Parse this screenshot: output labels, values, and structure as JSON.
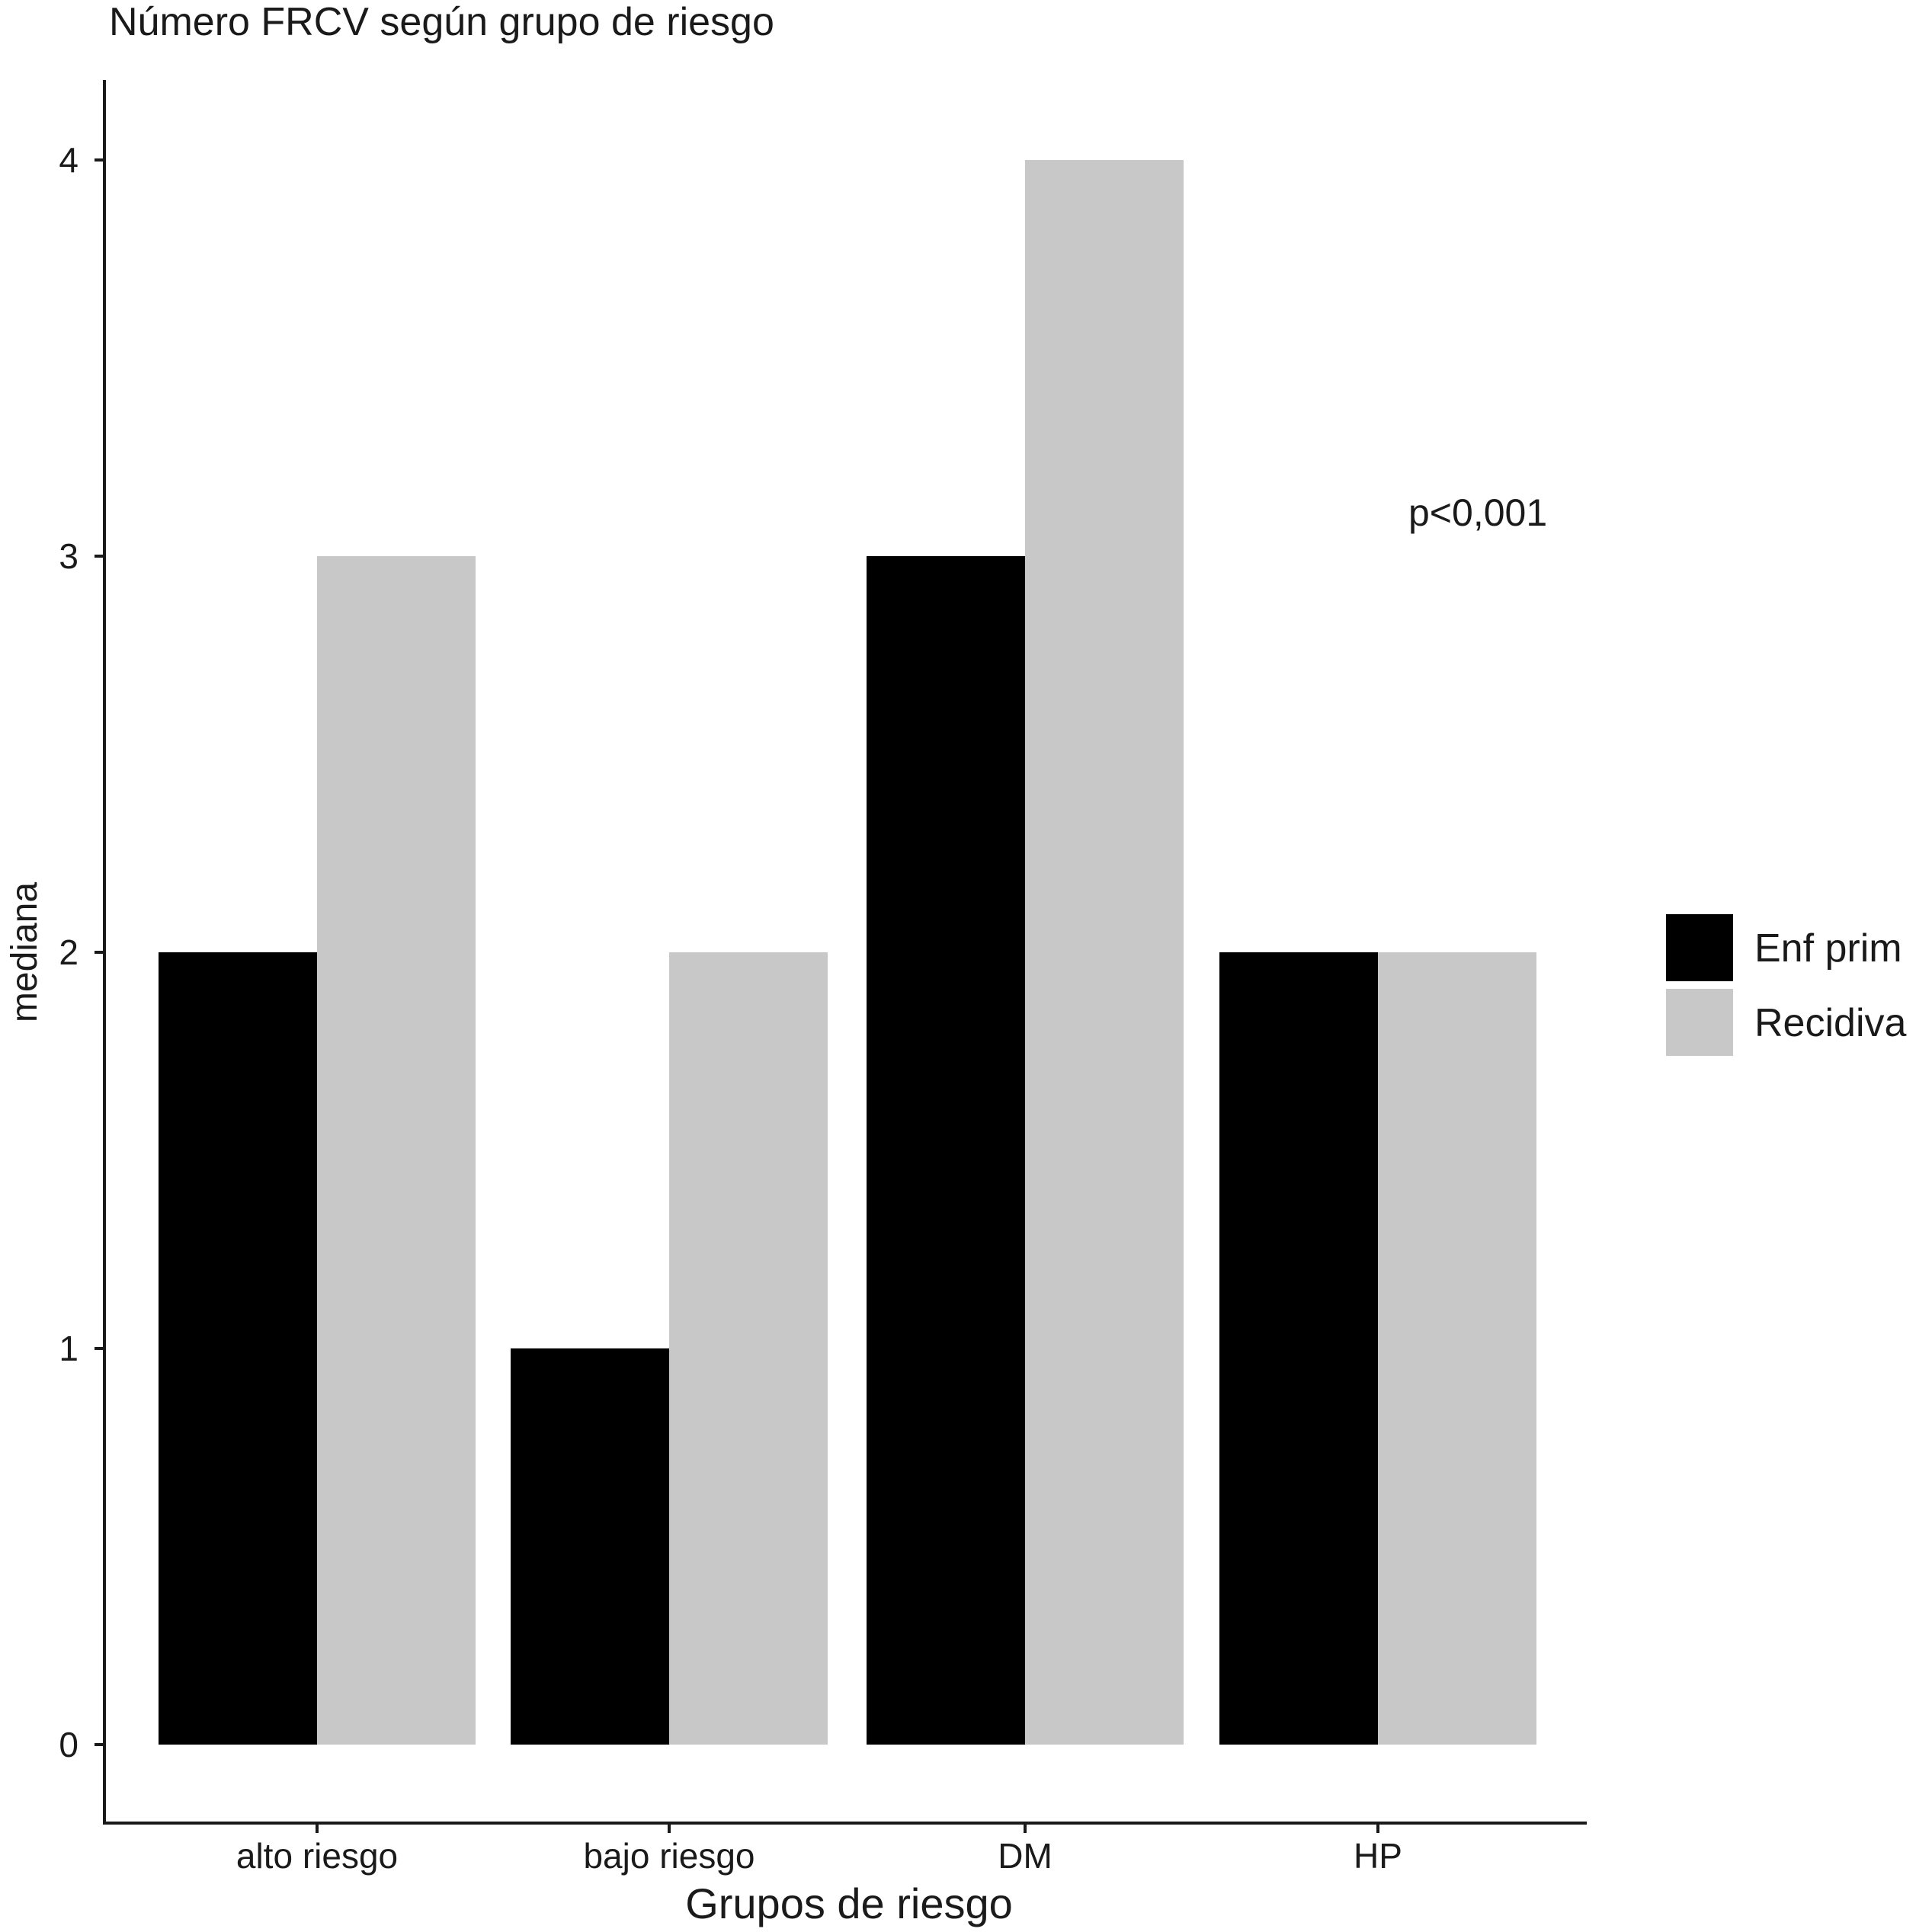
{
  "colors": {
    "Enf prim": "#000000",
    "Recidiva": "#c8c8c8"
  },
  "chart_data": {
    "type": "bar",
    "title": "Número FRCV según grupo de riesgo",
    "xlabel": "Grupos de riesgo",
    "ylabel": "mediana",
    "categories": [
      "alto riesgo",
      "bajo riesgo",
      "DM",
      "HP"
    ],
    "series": [
      {
        "name": "Enf prim",
        "values": [
          2,
          1,
          3,
          2
        ]
      },
      {
        "name": "Recidiva",
        "values": [
          3,
          2,
          4,
          2
        ]
      }
    ],
    "yticks": [
      "0",
      "1",
      "2",
      "3",
      "4"
    ],
    "ylim": [
      0,
      4
    ],
    "grid": false,
    "legend_position": "right",
    "annotation": "p<0,001"
  }
}
